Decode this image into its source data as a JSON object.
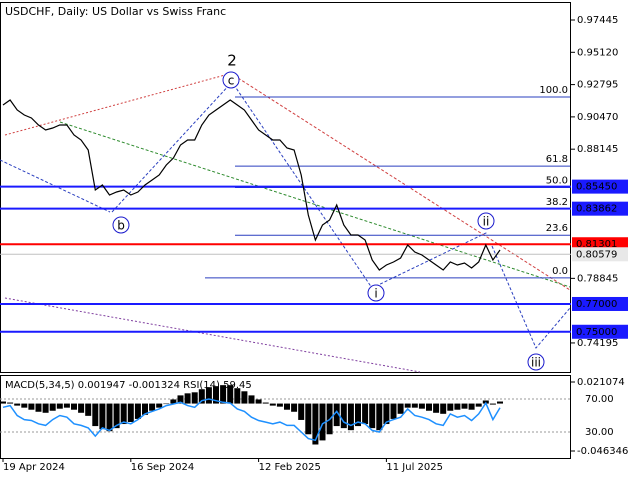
{
  "chart_data": [
    {
      "type": "line",
      "title": "USDCHF, Daily:  US Dollar vs Swiss Franc",
      "color": "#000000",
      "categories": [
        "19 Apr 2024",
        null,
        null,
        null,
        null,
        null,
        null,
        null,
        null,
        null,
        null,
        null,
        null,
        null,
        null,
        null,
        null,
        null,
        "16 Sep 2024",
        null,
        null,
        null,
        null,
        null,
        null,
        null,
        null,
        null,
        null,
        null,
        null,
        null,
        null,
        null,
        null,
        null,
        "12 Feb 2025",
        null,
        null,
        null,
        null,
        null,
        null,
        null,
        null,
        null,
        null,
        null,
        null,
        null,
        null,
        null,
        null,
        null,
        "11 Jul 2025",
        null,
        null,
        null,
        null,
        null,
        null,
        null,
        null,
        null,
        null,
        null,
        null,
        null,
        null,
        null,
        null
      ],
      "values": [
        0.91325,
        0.91685,
        0.90965,
        0.90605,
        0.90389,
        0.89885,
        0.89525,
        0.89669,
        0.89885,
        0.89885,
        0.89165,
        0.88805,
        0.88085,
        0.85205,
        0.85565,
        0.84845,
        0.85061,
        0.85205,
        0.84845,
        0.85061,
        0.85565,
        0.85925,
        0.86285,
        0.87005,
        0.87509,
        0.88445,
        0.88805,
        0.88805,
        0.89885,
        0.90605,
        0.90965,
        0.91325,
        0.91685,
        0.91325,
        0.90965,
        0.90245,
        0.89525,
        0.89165,
        0.88805,
        0.88805,
        0.88229,
        0.88085,
        0.86285,
        0.83405,
        0.81605,
        0.82685,
        0.83045,
        0.84125,
        0.82685,
        0.81965,
        0.81965,
        0.81605,
        0.80165,
        0.79445,
        0.79805,
        0.80021,
        0.80309,
        0.81245,
        0.80741,
        0.80525,
        0.80165,
        0.79805,
        0.79445,
        0.80021,
        0.79805,
        0.79949,
        0.79589,
        0.80021,
        0.81245,
        0.80165,
        0.80885
      ],
      "ylim": [
        0.72103,
        0.98525
      ],
      "yticks": [
        {
          "value": 0.97445,
          "label": "0.97445"
        },
        {
          "value": 0.9512,
          "label": "0.95120"
        },
        {
          "value": 0.92795,
          "label": "0.92795"
        },
        {
          "value": 0.9047,
          "label": "0.90470"
        },
        {
          "value": 0.88145,
          "label": "0.88145"
        },
        {
          "value": 0.78845,
          "label": "0.78845"
        },
        {
          "value": 0.74195,
          "label": "0.74195"
        }
      ],
      "levels": [
        {
          "value": 0.8545,
          "label": "0.85450",
          "color": "#1a1aff"
        },
        {
          "value": 0.83862,
          "label": "0.83862",
          "color": "#1a1aff"
        },
        {
          "value": 0.81301,
          "label": "0.81301",
          "color": "#ff0000"
        },
        {
          "value": 0.80579,
          "label": "0.80579",
          "color": "#c0c0c0"
        },
        {
          "value": 0.77,
          "label": "0.77000",
          "color": "#1a1aff"
        },
        {
          "value": 0.75,
          "label": "0.75000",
          "color": "#1a1aff"
        }
      ],
      "fib": {
        "high": 0.919,
        "low": 0.7888,
        "color": "#2a3fbf",
        "levels": [
          100,
          61.8,
          50,
          38.2,
          23.6,
          0
        ],
        "level_labels": [
          "100.0",
          "61.8",
          "50.0",
          "38.2",
          "23.6",
          "0.0"
        ]
      },
      "waves": [
        {
          "text": "2",
          "color": "#b03030"
        },
        {
          "text": "c",
          "color": "#1a1acc"
        },
        {
          "text": "b",
          "color": "#1a1acc"
        },
        {
          "text": "i",
          "color": "#1a1acc"
        },
        {
          "text": "ii",
          "color": "#1a1acc"
        },
        {
          "text": "iii",
          "color": "#1a1acc"
        }
      ]
    },
    {
      "type": "bar",
      "title": "MACD(5,34,5) 0.001947 -0.001324 RSI(14) 59.45",
      "ylim": [
        -0.05319,
        0.02694
      ],
      "yticks": [
        0.021074,
        -0.046346
      ],
      "y2lim": [
        -1.5,
        97.9
      ],
      "y2ticks": [
        {
          "value": 70,
          "label": "70.00"
        },
        {
          "value": 30,
          "label": "30.00"
        }
      ],
      "series": [
        {
          "color": "#000000",
          "values": [
            0.002,
            0.001,
            -0.002,
            -0.004,
            -0.006,
            -0.008,
            -0.009,
            -0.007,
            -0.005,
            -0.004,
            -0.006,
            -0.009,
            -0.012,
            -0.022,
            -0.025,
            -0.027,
            -0.024,
            -0.02,
            -0.018,
            -0.015,
            -0.011,
            -0.007,
            -0.004,
            0.0,
            0.004,
            0.008,
            0.01,
            0.011,
            0.014,
            0.016,
            0.017,
            0.018,
            0.018,
            0.015,
            0.012,
            0.008,
            0.004,
            0.001,
            -0.002,
            -0.003,
            -0.006,
            -0.008,
            -0.016,
            -0.03,
            -0.04,
            -0.036,
            -0.03,
            -0.022,
            -0.024,
            -0.026,
            -0.022,
            -0.02,
            -0.024,
            -0.026,
            -0.02,
            -0.015,
            -0.01,
            -0.004,
            -0.004,
            -0.005,
            -0.007,
            -0.009,
            -0.01,
            -0.007,
            -0.006,
            -0.005,
            -0.006,
            -0.003,
            0.003,
            -0.001,
            0.002
          ]
        },
        {
          "color": "#1e90ff",
          "axis": "y2",
          "values": [
            60,
            62,
            50,
            45,
            44,
            40,
            38,
            45,
            50,
            48,
            40,
            38,
            35,
            25,
            35,
            32,
            38,
            42,
            40,
            45,
            52,
            55,
            58,
            62,
            64,
            66,
            62,
            60,
            68,
            70,
            68,
            66,
            65,
            58,
            55,
            48,
            44,
            42,
            40,
            42,
            38,
            38,
            30,
            22,
            20,
            40,
            45,
            55,
            42,
            38,
            42,
            40,
            32,
            30,
            42,
            45,
            48,
            58,
            50,
            48,
            45,
            40,
            38,
            52,
            48,
            50,
            44,
            52,
            65,
            45,
            59.45
          ]
        }
      ]
    }
  ]
}
